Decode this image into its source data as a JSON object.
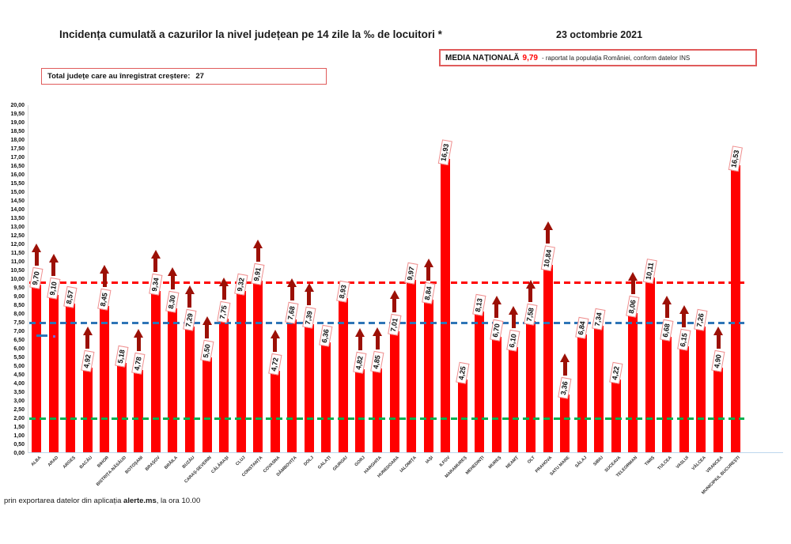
{
  "header": {
    "title": "Incidența cumulată a cazurilor la nivel județean pe 14 zile la ‰ de locuitori *",
    "date": "23 octombrie 2021",
    "national_average": {
      "label": "MEDIA NAȚIONALĂ",
      "value": "9,79",
      "suffix": "-  raportat la populația României, conform datelor INS"
    },
    "increase_box": {
      "label": "Total județe care au înregistrat creștere:",
      "value": "27"
    }
  },
  "footer": {
    "text_before": "prin exportarea datelor din aplicația ",
    "bold": "alerte.ms",
    "text_after": ", la ora 10.00"
  },
  "chart_data": {
    "type": "bar",
    "title": "Incidența cumulată a cazurilor la nivel județean pe 14 zile la ‰ de locuitori *",
    "xlabel": "",
    "ylabel": "",
    "ylim": [
      0,
      20
    ],
    "ytick_step": 0.5,
    "grid": false,
    "bar_color": "#FF0000",
    "value_label_box_border": "#EF8E8E",
    "increase_arrow_color": "#9C1006",
    "counties": [
      {
        "name": "ALBA",
        "value": 9.7,
        "label": "9,70",
        "increase": true
      },
      {
        "name": "ARAD",
        "value": 9.1,
        "label": "9,10",
        "increase": true
      },
      {
        "name": "ARGEȘ",
        "value": 8.57,
        "label": "8,57",
        "increase": false
      },
      {
        "name": "BACĂU",
        "value": 4.92,
        "label": "4,92",
        "increase": true
      },
      {
        "name": "BIHOR",
        "value": 8.45,
        "label": "8,45",
        "increase": true
      },
      {
        "name": "BISTRIȚA-NĂSĂUD",
        "value": 5.18,
        "label": "5,18",
        "increase": false
      },
      {
        "name": "BOTOȘANI",
        "value": 4.78,
        "label": "4,78",
        "increase": true
      },
      {
        "name": "BRAȘOV",
        "value": 9.34,
        "label": "9,34",
        "increase": true
      },
      {
        "name": "BRĂILA",
        "value": 8.3,
        "label": "8,30",
        "increase": true
      },
      {
        "name": "BUZĂU",
        "value": 7.29,
        "label": "7,29",
        "increase": true
      },
      {
        "name": "CARAȘ-SEVERIN",
        "value": 5.5,
        "label": "5,50",
        "increase": true
      },
      {
        "name": "CĂLĂRAȘI",
        "value": 7.75,
        "label": "7,75",
        "increase": true
      },
      {
        "name": "CLUJ",
        "value": 9.32,
        "label": "9,32",
        "increase": false
      },
      {
        "name": "CONSTANȚA",
        "value": 9.91,
        "label": "9,91",
        "increase": true
      },
      {
        "name": "COVASNA",
        "value": 4.72,
        "label": "4,72",
        "increase": true
      },
      {
        "name": "DÂMBOVIȚA",
        "value": 7.68,
        "label": "7,68",
        "increase": true
      },
      {
        "name": "DOLJ",
        "value": 7.39,
        "label": "7,39",
        "increase": true
      },
      {
        "name": "GALAȚI",
        "value": 6.36,
        "label": "6,36",
        "increase": false
      },
      {
        "name": "GIURGIU",
        "value": 8.93,
        "label": "8,93",
        "increase": false
      },
      {
        "name": "GORJ",
        "value": 4.82,
        "label": "4,82",
        "increase": true
      },
      {
        "name": "HARGHITA",
        "value": 4.85,
        "label": "4,85",
        "increase": true
      },
      {
        "name": "HUNEDOARA",
        "value": 7.01,
        "label": "7,01",
        "increase": true
      },
      {
        "name": "IALOMIȚA",
        "value": 9.97,
        "label": "9,97",
        "increase": false
      },
      {
        "name": "IAȘI",
        "value": 8.84,
        "label": "8,84",
        "increase": true
      },
      {
        "name": "ILFOV",
        "value": 16.93,
        "label": "16,93",
        "increase": false
      },
      {
        "name": "MARAMUREȘ",
        "value": 4.25,
        "label": "4,25",
        "increase": false
      },
      {
        "name": "MEHEDINȚI",
        "value": 8.13,
        "label": "8,13",
        "increase": false
      },
      {
        "name": "MUREȘ",
        "value": 6.7,
        "label": "6,70",
        "increase": true
      },
      {
        "name": "NEAMȚ",
        "value": 6.1,
        "label": "6,10",
        "increase": true
      },
      {
        "name": "OLT",
        "value": 7.58,
        "label": "7,58",
        "increase": true
      },
      {
        "name": "PRAHOVA",
        "value": 10.84,
        "label": "10,84",
        "increase": true
      },
      {
        "name": "SATU MARE",
        "value": 3.36,
        "label": "3,36",
        "increase": true
      },
      {
        "name": "SĂLAJ",
        "value": 6.84,
        "label": "6,84",
        "increase": false
      },
      {
        "name": "SIBIU",
        "value": 7.34,
        "label": "7,34",
        "increase": false
      },
      {
        "name": "SUCEAVA",
        "value": 4.22,
        "label": "4,22",
        "increase": false
      },
      {
        "name": "TELEORMAN",
        "value": 8.06,
        "label": "8,06",
        "increase": true
      },
      {
        "name": "TIMIȘ",
        "value": 10.11,
        "label": "10,11",
        "increase": false
      },
      {
        "name": "TULCEA",
        "value": 6.68,
        "label": "6,68",
        "increase": true
      },
      {
        "name": "VASLUI",
        "value": 6.15,
        "label": "6,15",
        "increase": true
      },
      {
        "name": "VÂLCEA",
        "value": 7.26,
        "label": "7,26",
        "increase": false
      },
      {
        "name": "VRANCEA",
        "value": 4.9,
        "label": "4,90",
        "increase": true
      },
      {
        "name": "MUNICIPIUL BUCUREȘTI",
        "value": 16.53,
        "label": "16,53",
        "increase": false
      }
    ],
    "reference_lines": [
      {
        "name": "media-nationala",
        "value": 9.79,
        "color": "#FF0000",
        "style": "dashed"
      },
      {
        "name": "threshold-blue",
        "value": 7.5,
        "color": "#2E75B6",
        "style": "dashed"
      },
      {
        "name": "threshold-green",
        "value": 2.0,
        "color": "#00B050",
        "style": "dashed"
      }
    ]
  }
}
